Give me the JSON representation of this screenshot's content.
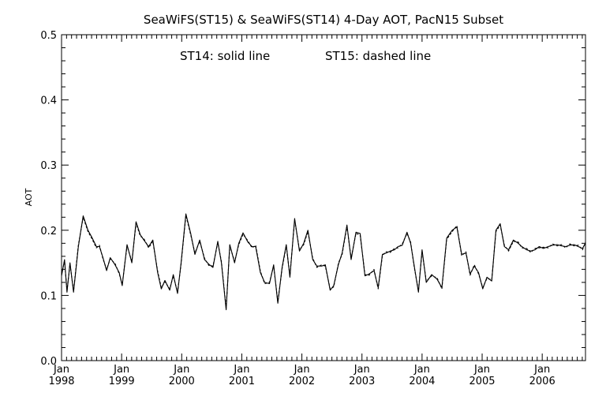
{
  "chart_data": {
    "type": "line",
    "title": "SeaWiFS(ST15) & SeaWiFS(ST14) 4-Day AOT, PacN15 Subset",
    "annotation_left": "ST14: solid line",
    "annotation_right": "ST15: dashed line",
    "ylabel": "AOT",
    "xlabel": "",
    "ylim": [
      0.0,
      0.5
    ],
    "xlim": [
      1998.0,
      2006.72
    ],
    "yticks": [
      {
        "value": 0.0,
        "label": "0.0"
      },
      {
        "value": 0.1,
        "label": "0.1"
      },
      {
        "value": 0.2,
        "label": "0.2"
      },
      {
        "value": 0.3,
        "label": "0.3"
      },
      {
        "value": 0.4,
        "label": "0.4"
      },
      {
        "value": 0.5,
        "label": "0.5"
      }
    ],
    "xticks": [
      {
        "value": 1998,
        "month": "Jan",
        "year": "1998"
      },
      {
        "value": 1999,
        "month": "Jan",
        "year": "1999"
      },
      {
        "value": 2000,
        "month": "Jan",
        "year": "2000"
      },
      {
        "value": 2001,
        "month": "Jan",
        "year": "2001"
      },
      {
        "value": 2002,
        "month": "Jan",
        "year": "2002"
      },
      {
        "value": 2003,
        "month": "Jan",
        "year": "2003"
      },
      {
        "value": 2004,
        "month": "Jan",
        "year": "2004"
      },
      {
        "value": 2005,
        "month": "Jan",
        "year": "2005"
      },
      {
        "value": 2006,
        "month": "Jan",
        "year": "2006"
      }
    ],
    "grid": false,
    "series": [
      {
        "name": "ST14",
        "style": "solid",
        "color": "#000000",
        "x": [
          1998.0,
          1998.05,
          1998.09,
          1998.14,
          1998.2,
          1998.28,
          1998.36,
          1998.44,
          1998.5,
          1998.58,
          1998.63,
          1998.69,
          1998.75,
          1998.81,
          1998.89,
          1998.96,
          1999.01,
          1999.09,
          1999.17,
          1999.24,
          1999.31,
          1999.37,
          1999.45,
          1999.52,
          1999.6,
          1999.66,
          1999.72,
          1999.8,
          1999.86,
          1999.93,
          1999.99,
          2000.07,
          2000.15,
          2000.22,
          2000.3,
          2000.38,
          2000.45,
          2000.52,
          2000.6,
          2000.66,
          2000.74,
          2000.8,
          2000.88,
          2000.95,
          2001.02,
          2001.1,
          2001.17,
          2001.23,
          2001.31,
          2001.38,
          2001.46,
          2001.53,
          2001.6,
          2001.67,
          2001.74,
          2001.8,
          2001.88,
          2001.96,
          2002.03,
          2002.1,
          2002.18,
          2002.25,
          2002.33,
          2002.39,
          2002.47,
          2002.53,
          2002.61,
          2002.67,
          2002.75,
          2002.82,
          2002.9,
          2002.97,
          2003.05,
          2003.12,
          2003.2,
          2003.27,
          2003.34,
          2003.4,
          2003.47,
          2003.54,
          2003.6,
          2003.67,
          2003.75,
          2003.81,
          2003.87,
          2003.94,
          2004.0,
          2004.07,
          2004.16,
          2004.25,
          2004.33,
          2004.41,
          2004.5,
          2004.58,
          2004.66,
          2004.73,
          2004.8,
          2004.87,
          2004.94,
          2005.01,
          2005.08,
          2005.16,
          2005.23,
          2005.3,
          2005.37,
          2005.44,
          2005.52,
          2005.6,
          2005.66,
          2005.74,
          2005.81,
          2005.88,
          2005.95,
          2006.02,
          2006.1,
          2006.17,
          2006.25,
          2006.32,
          2006.39,
          2006.46,
          2006.53,
          2006.6,
          2006.67,
          2006.72
        ],
        "y": [
          0.13,
          0.155,
          0.105,
          0.15,
          0.105,
          0.175,
          0.222,
          0.2,
          0.19,
          0.175,
          0.175,
          0.158,
          0.138,
          0.158,
          0.147,
          0.135,
          0.115,
          0.178,
          0.15,
          0.213,
          0.193,
          0.185,
          0.175,
          0.185,
          0.135,
          0.11,
          0.123,
          0.108,
          0.132,
          0.103,
          0.15,
          0.225,
          0.195,
          0.163,
          0.185,
          0.155,
          0.148,
          0.143,
          0.183,
          0.15,
          0.078,
          0.178,
          0.15,
          0.18,
          0.196,
          0.182,
          0.175,
          0.175,
          0.135,
          0.12,
          0.118,
          0.147,
          0.088,
          0.143,
          0.178,
          0.128,
          0.218,
          0.168,
          0.18,
          0.2,
          0.155,
          0.145,
          0.145,
          0.147,
          0.108,
          0.115,
          0.148,
          0.165,
          0.208,
          0.155,
          0.197,
          0.195,
          0.13,
          0.133,
          0.138,
          0.112,
          0.163,
          0.165,
          0.168,
          0.17,
          0.175,
          0.177,
          0.197,
          0.18,
          0.145,
          0.105,
          0.17,
          0.12,
          0.132,
          0.125,
          0.112,
          0.188,
          0.2,
          0.205,
          0.163,
          0.165,
          0.133,
          0.145,
          0.135,
          0.11,
          0.128,
          0.122,
          0.2,
          0.21,
          0.175,
          0.17,
          0.185,
          0.18,
          0.175,
          0.17,
          0.168,
          0.17,
          0.175,
          0.172,
          0.175,
          0.177,
          0.178,
          0.176,
          0.175,
          0.177,
          0.178,
          0.175,
          0.172,
          0.18
        ]
      },
      {
        "name": "ST15",
        "style": "dashed",
        "color": "#000000",
        "x": [
          1998.0,
          1998.05,
          1998.09,
          1998.14,
          1998.2,
          1998.28,
          1998.36,
          1998.44,
          1998.5,
          1998.58,
          1998.63,
          1998.69,
          1998.75,
          1998.81,
          1998.89,
          1998.96,
          1999.01,
          1999.09,
          1999.17,
          1999.24,
          1999.31,
          1999.37,
          1999.45,
          1999.52,
          1999.6,
          1999.66,
          1999.72,
          1999.8,
          1999.86,
          1999.93,
          1999.99,
          2000.07,
          2000.15,
          2000.22,
          2000.3,
          2000.38,
          2000.45,
          2000.52,
          2000.6,
          2000.66,
          2000.74,
          2000.8,
          2000.88,
          2000.95,
          2001.02,
          2001.1,
          2001.17,
          2001.23,
          2001.31,
          2001.38,
          2001.46,
          2001.53,
          2001.6,
          2001.67,
          2001.74,
          2001.8,
          2001.88,
          2001.96,
          2002.03,
          2002.1,
          2002.18,
          2002.25,
          2002.33,
          2002.39,
          2002.47,
          2002.53,
          2002.61,
          2002.67,
          2002.75,
          2002.82,
          2002.9,
          2002.97,
          2003.05,
          2003.12,
          2003.2,
          2003.27,
          2003.34,
          2003.4,
          2003.47,
          2003.54,
          2003.6,
          2003.67,
          2003.75,
          2003.81,
          2003.87,
          2003.94,
          2004.0,
          2004.07,
          2004.16,
          2004.25,
          2004.33,
          2004.41,
          2004.5,
          2004.58,
          2004.66,
          2004.73,
          2004.8,
          2004.87,
          2004.94,
          2005.01,
          2005.08,
          2005.16,
          2005.23,
          2005.3,
          2005.37,
          2005.44,
          2005.52,
          2005.6,
          2005.66,
          2005.74,
          2005.81,
          2005.88,
          2005.95,
          2006.02,
          2006.1,
          2006.17,
          2006.25,
          2006.32,
          2006.39,
          2006.46,
          2006.53,
          2006.6,
          2006.67,
          2006.72
        ],
        "y": [
          0.132,
          0.153,
          0.107,
          0.148,
          0.107,
          0.177,
          0.22,
          0.198,
          0.188,
          0.173,
          0.177,
          0.156,
          0.14,
          0.156,
          0.149,
          0.133,
          0.117,
          0.176,
          0.152,
          0.211,
          0.191,
          0.187,
          0.173,
          0.183,
          0.137,
          0.112,
          0.121,
          0.11,
          0.13,
          0.105,
          0.148,
          0.223,
          0.193,
          0.165,
          0.183,
          0.157,
          0.146,
          0.145,
          0.181,
          0.152,
          0.08,
          0.176,
          0.152,
          0.178,
          0.194,
          0.184,
          0.173,
          0.177,
          0.137,
          0.118,
          0.12,
          0.145,
          0.09,
          0.141,
          0.176,
          0.13,
          0.216,
          0.17,
          0.178,
          0.198,
          0.157,
          0.143,
          0.147,
          0.145,
          0.11,
          0.113,
          0.15,
          0.163,
          0.206,
          0.157,
          0.195,
          0.193,
          0.132,
          0.131,
          0.14,
          0.11,
          0.161,
          0.167,
          0.166,
          0.172,
          0.173,
          0.179,
          0.195,
          0.182,
          0.143,
          0.107,
          0.168,
          0.122,
          0.13,
          0.127,
          0.11,
          0.186,
          0.198,
          0.207,
          0.161,
          0.167,
          0.131,
          0.147,
          0.133,
          0.112,
          0.126,
          0.124,
          0.198,
          0.208,
          0.177,
          0.168,
          0.183,
          0.182,
          0.173,
          0.172,
          0.166,
          0.172,
          0.173,
          0.174,
          0.173,
          0.179,
          0.176,
          0.178,
          0.173,
          0.179,
          0.176,
          0.177,
          0.17,
          0.182
        ]
      }
    ]
  }
}
